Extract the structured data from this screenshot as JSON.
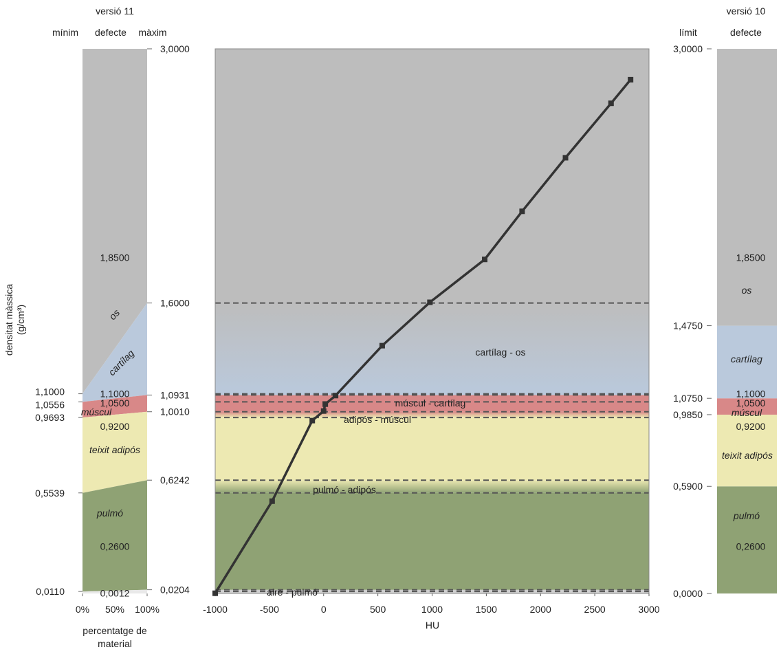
{
  "chart_data": {
    "type": "line",
    "xlabel": "HU",
    "ylabel_line1": "densitat màssica",
    "ylabel_line2": "(g/cm³)",
    "xlim": [
      -1000,
      3000
    ],
    "ylim": [
      0,
      3
    ],
    "x_ticks": [
      "-1000",
      "-500",
      "0",
      "500",
      "1000",
      "1500",
      "2000",
      "2500",
      "3000"
    ],
    "series": [
      {
        "x": [
          -1000,
          -475,
          -105,
          0,
          15,
          110,
          540,
          980,
          1485,
          1830,
          2230,
          2650,
          2830
        ],
        "y": [
          0.0012,
          0.5085,
          0.9523,
          1.005,
          1.0428,
          1.09,
          1.365,
          1.604,
          1.84,
          2.105,
          2.4,
          2.7,
          2.83
        ]
      }
    ],
    "bands": [
      {
        "material": "pulmó",
        "from": 0.0,
        "to": 0.5539,
        "color": "#8fa274"
      },
      {
        "material": "teixit adipós",
        "from": 0.6242,
        "to": 0.9693,
        "color": "#ede9b2"
      },
      {
        "material": "múscul",
        "from": 1.001,
        "to": 1.0931,
        "color": "#d88888"
      },
      {
        "material": "cartílag",
        "from": 1.0931,
        "to": 1.6,
        "color": "#bac9dc"
      },
      {
        "material": "os",
        "from": 1.6,
        "to": 3.0,
        "color": "#bdbdbd"
      }
    ],
    "boundaries": [
      {
        "values": [
          0.011,
          0.0204
        ],
        "label": "aire - pulmó"
      },
      {
        "values": [
          0.5539,
          0.6242
        ],
        "label": "pulmó - adipós"
      },
      {
        "values": [
          0.9693,
          1.001
        ],
        "label": "adipós - múscul"
      },
      {
        "values": [
          1.0556,
          1.0931
        ],
        "label": "múscul - cartílag"
      },
      {
        "values": [
          1.1,
          1.6
        ],
        "label": "cartílag - os"
      }
    ],
    "left_panel": {
      "version": "versió 11",
      "col_min": "mínim",
      "col_def": "defecte",
      "col_max": "màxim",
      "xlabel_line1": "percentatge de",
      "xlabel_line2": "material",
      "x_ticks": [
        "0%",
        "50%",
        "100%"
      ],
      "left_ticks": [
        {
          "label": "0,0110",
          "value": 0.011
        },
        {
          "label": "0,5539",
          "value": 0.5539
        },
        {
          "label": "0,9693",
          "value": 0.9693
        },
        {
          "label": "1,0556",
          "value": 1.0556
        },
        {
          "label": "1,1000",
          "value": 1.1
        }
      ],
      "right_ticks": [
        {
          "label": "0,0204",
          "value": 0.0204
        },
        {
          "label": "0,6242",
          "value": 0.6242
        },
        {
          "label": "1,0010",
          "value": 1.001
        },
        {
          "label": "1,0931",
          "value": 1.0931
        },
        {
          "label": "1,6000",
          "value": 1.6
        },
        {
          "label": "3,0000",
          "value": 3.0
        }
      ],
      "defaults": [
        {
          "label": "0,0012",
          "value": 0.0012
        },
        {
          "label": "0,2600",
          "value": 0.26
        },
        {
          "label": "0,9200",
          "value": 0.92
        },
        {
          "label": "1,0500",
          "value": 1.05
        },
        {
          "label": "1,1000",
          "value": 1.1
        },
        {
          "label": "1,8500",
          "value": 1.85
        }
      ],
      "materials": [
        "pulmó",
        "teixit adipós",
        "múscul",
        "cartílag",
        "os"
      ]
    },
    "right_panel": {
      "version": "versió 10",
      "col_lim": "límit",
      "col_def": "defecte",
      "ticks": [
        {
          "label": "0,0000",
          "value": 0.0
        },
        {
          "label": "0,5900",
          "value": 0.59
        },
        {
          "label": "0,9850",
          "value": 0.985
        },
        {
          "label": "1,0750",
          "value": 1.075
        },
        {
          "label": "1,4750",
          "value": 1.475
        },
        {
          "label": "3,0000",
          "value": 3.0
        }
      ],
      "defaults": [
        {
          "label": "0,2600",
          "value": 0.26
        },
        {
          "label": "0,9200",
          "value": 0.92
        },
        {
          "label": "1,0500",
          "value": 1.05
        },
        {
          "label": "1,1000",
          "value": 1.1
        },
        {
          "label": "1,8500",
          "value": 1.85
        }
      ],
      "materials": [
        "pulmó",
        "teixit adipós",
        "múscul",
        "cartílag",
        "os"
      ]
    }
  }
}
